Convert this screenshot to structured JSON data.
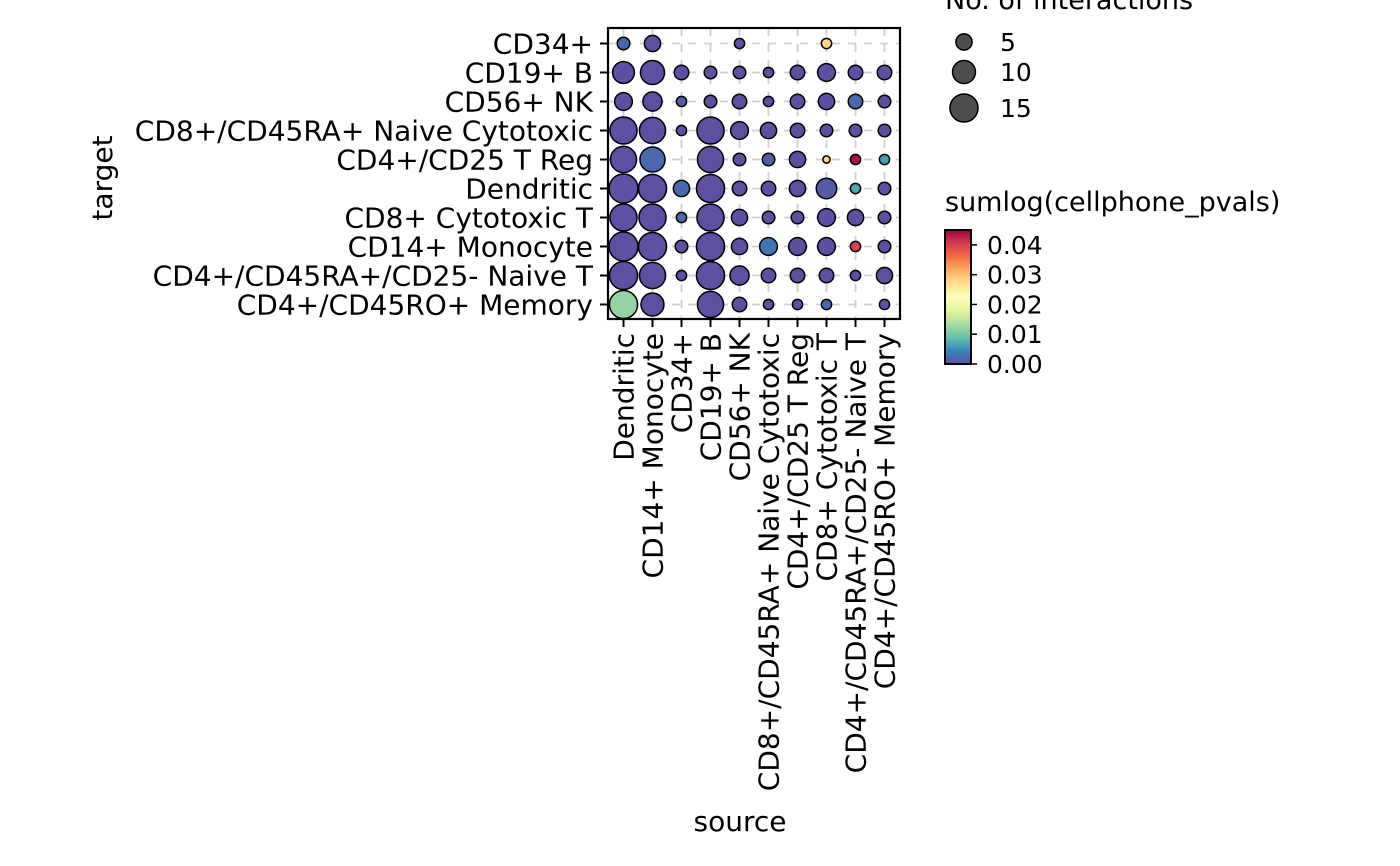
{
  "chart_data": {
    "type": "scatter",
    "xlabel": "source",
    "ylabel": "target",
    "x_categories": [
      "Dendritic",
      "CD14+ Monocyte",
      "CD34+",
      "CD19+ B",
      "CD56+ NK",
      "CD8+/CD45RA+ Naive Cytotoxic",
      "CD4+/CD25 T Reg",
      "CD8+ Cytotoxic T",
      "CD4+/CD45RA+/CD25- Naive T",
      "CD4+/CD45RO+ Memory"
    ],
    "y_categories": [
      "CD34+",
      "CD19+ B",
      "CD56+ NK",
      "CD8+/CD45RA+ Naive Cytotoxic",
      "CD4+/CD25 T Reg",
      "Dendritic",
      "CD8+ Cytotoxic T",
      "CD14+ Monocyte",
      "CD4+/CD45RA+/CD25- Naive T",
      "CD4+/CD45RO+ Memory"
    ],
    "size_legend": {
      "title": "No. of interactions",
      "values": [
        5,
        10,
        15
      ]
    },
    "color_legend": {
      "title": "sumlog(cellphone_pvals)",
      "min": 0.0,
      "max": 0.045,
      "ticks": [
        "0.00",
        "0.01",
        "0.02",
        "0.03",
        "0.04"
      ],
      "tick_values": [
        0.0,
        0.01,
        0.02,
        0.03,
        0.04
      ],
      "palette": "Spectral (reversed)",
      "stops": [
        "#5e4fa2",
        "#3288bd",
        "#66c2a5",
        "#abdda4",
        "#e6f598",
        "#ffffbf",
        "#fee08b",
        "#fdae61",
        "#f46d43",
        "#d53e4f",
        "#9e0142"
      ]
    },
    "points": [
      {
        "source": "Dendritic",
        "target": "CD34+",
        "count": 3,
        "pval": 0.002
      },
      {
        "source": "CD14+ Monocyte",
        "target": "CD34+",
        "count": 5,
        "pval": 0.0
      },
      {
        "source": "CD56+ NK",
        "target": "CD34+",
        "count": 2,
        "pval": 0.0
      },
      {
        "source": "CD8+ Cytotoxic T",
        "target": "CD34+",
        "count": 2,
        "pval": 0.028
      },
      {
        "source": "Dendritic",
        "target": "CD19+ B",
        "count": 9,
        "pval": 0.0
      },
      {
        "source": "CD14+ Monocyte",
        "target": "CD19+ B",
        "count": 11,
        "pval": 0.0
      },
      {
        "source": "CD34+",
        "target": "CD19+ B",
        "count": 4,
        "pval": 0.0
      },
      {
        "source": "CD19+ B",
        "target": "CD19+ B",
        "count": 3,
        "pval": 0.0
      },
      {
        "source": "CD56+ NK",
        "target": "CD19+ B",
        "count": 3,
        "pval": 0.0
      },
      {
        "source": "CD8+/CD45RA+ Naive Cytotoxic",
        "target": "CD19+ B",
        "count": 2,
        "pval": 0.0
      },
      {
        "source": "CD4+/CD25 T Reg",
        "target": "CD19+ B",
        "count": 4,
        "pval": 0.0
      },
      {
        "source": "CD8+ Cytotoxic T",
        "target": "CD19+ B",
        "count": 6,
        "pval": 0.0
      },
      {
        "source": "CD4+/CD45RA+/CD25- Naive T",
        "target": "CD19+ B",
        "count": 4,
        "pval": 0.0
      },
      {
        "source": "CD4+/CD45RO+ Memory",
        "target": "CD19+ B",
        "count": 4,
        "pval": 0.0
      },
      {
        "source": "Dendritic",
        "target": "CD56+ NK",
        "count": 6,
        "pval": 0.0
      },
      {
        "source": "CD14+ Monocyte",
        "target": "CD56+ NK",
        "count": 7,
        "pval": 0.0
      },
      {
        "source": "CD34+",
        "target": "CD56+ NK",
        "count": 2,
        "pval": 0.001
      },
      {
        "source": "CD19+ B",
        "target": "CD56+ NK",
        "count": 3,
        "pval": 0.0
      },
      {
        "source": "CD56+ NK",
        "target": "CD56+ NK",
        "count": 4,
        "pval": 0.0
      },
      {
        "source": "CD8+/CD45RA+ Naive Cytotoxic",
        "target": "CD56+ NK",
        "count": 2,
        "pval": 0.0
      },
      {
        "source": "CD4+/CD25 T Reg",
        "target": "CD56+ NK",
        "count": 4,
        "pval": 0.0
      },
      {
        "source": "CD8+ Cytotoxic T",
        "target": "CD56+ NK",
        "count": 5,
        "pval": 0.0
      },
      {
        "source": "CD4+/CD45RA+/CD25- Naive T",
        "target": "CD56+ NK",
        "count": 4,
        "pval": 0.002
      },
      {
        "source": "CD4+/CD45RO+ Memory",
        "target": "CD56+ NK",
        "count": 3,
        "pval": 0.0
      },
      {
        "source": "Dendritic",
        "target": "CD8+/CD45RA+ Naive Cytotoxic",
        "count": 14,
        "pval": 0.0
      },
      {
        "source": "CD14+ Monocyte",
        "target": "CD8+/CD45RA+ Naive Cytotoxic",
        "count": 13,
        "pval": 0.0
      },
      {
        "source": "CD34+",
        "target": "CD8+/CD45RA+ Naive Cytotoxic",
        "count": 2,
        "pval": 0.0
      },
      {
        "source": "CD19+ B",
        "target": "CD8+/CD45RA+ Naive Cytotoxic",
        "count": 14,
        "pval": 0.0
      },
      {
        "source": "CD56+ NK",
        "target": "CD8+/CD45RA+ Naive Cytotoxic",
        "count": 6,
        "pval": 0.0
      },
      {
        "source": "CD8+/CD45RA+ Naive Cytotoxic",
        "target": "CD8+/CD45RA+ Naive Cytotoxic",
        "count": 5,
        "pval": 0.0
      },
      {
        "source": "CD4+/CD25 T Reg",
        "target": "CD8+/CD45RA+ Naive Cytotoxic",
        "count": 4,
        "pval": 0.0
      },
      {
        "source": "CD8+ Cytotoxic T",
        "target": "CD8+/CD45RA+ Naive Cytotoxic",
        "count": 3,
        "pval": 0.0
      },
      {
        "source": "CD4+/CD45RA+/CD25- Naive T",
        "target": "CD8+/CD45RA+ Naive Cytotoxic",
        "count": 3,
        "pval": 0.0
      },
      {
        "source": "CD4+/CD45RO+ Memory",
        "target": "CD8+/CD45RA+ Naive Cytotoxic",
        "count": 3,
        "pval": 0.0
      },
      {
        "source": "Dendritic",
        "target": "CD4+/CD25 T Reg",
        "count": 13,
        "pval": 0.0
      },
      {
        "source": "CD14+ Monocyte",
        "target": "CD4+/CD25 T Reg",
        "count": 12,
        "pval": 0.002
      },
      {
        "source": "CD19+ B",
        "target": "CD4+/CD25 T Reg",
        "count": 13,
        "pval": 0.0
      },
      {
        "source": "CD56+ NK",
        "target": "CD4+/CD25 T Reg",
        "count": 3,
        "pval": 0.0
      },
      {
        "source": "CD8+/CD45RA+ Naive Cytotoxic",
        "target": "CD4+/CD25 T Reg",
        "count": 3,
        "pval": 0.001
      },
      {
        "source": "CD4+/CD25 T Reg",
        "target": "CD4+/CD25 T Reg",
        "count": 5,
        "pval": 0.0
      },
      {
        "source": "CD8+ Cytotoxic T",
        "target": "CD4+/CD25 T Reg",
        "count": 1,
        "pval": 0.028
      },
      {
        "source": "CD4+/CD45RA+/CD25- Naive T",
        "target": "CD4+/CD25 T Reg",
        "count": 2,
        "pval": 0.044
      },
      {
        "source": "CD4+/CD45RO+ Memory",
        "target": "CD4+/CD25 T Reg",
        "count": 2,
        "pval": 0.006
      },
      {
        "source": "Dendritic",
        "target": "Dendritic",
        "count": 16,
        "pval": 0.0
      },
      {
        "source": "CD14+ Monocyte",
        "target": "Dendritic",
        "count": 15,
        "pval": 0.0
      },
      {
        "source": "CD34+",
        "target": "Dendritic",
        "count": 5,
        "pval": 0.002
      },
      {
        "source": "CD19+ B",
        "target": "Dendritic",
        "count": 15,
        "pval": 0.0
      },
      {
        "source": "CD56+ NK",
        "target": "Dendritic",
        "count": 4,
        "pval": 0.0
      },
      {
        "source": "CD8+/CD45RA+ Naive Cytotoxic",
        "target": "Dendritic",
        "count": 4,
        "pval": 0.0
      },
      {
        "source": "CD4+/CD25 T Reg",
        "target": "Dendritic",
        "count": 5,
        "pval": 0.0
      },
      {
        "source": "CD8+ Cytotoxic T",
        "target": "Dendritic",
        "count": 8,
        "pval": 0.001
      },
      {
        "source": "CD4+/CD45RA+/CD25- Naive T",
        "target": "Dendritic",
        "count": 2,
        "pval": 0.007
      },
      {
        "source": "CD4+/CD45RO+ Memory",
        "target": "Dendritic",
        "count": 3,
        "pval": 0.0
      },
      {
        "source": "Dendritic",
        "target": "CD8+ Cytotoxic T",
        "count": 14,
        "pval": 0.0
      },
      {
        "source": "CD14+ Monocyte",
        "target": "CD8+ Cytotoxic T",
        "count": 14,
        "pval": 0.0
      },
      {
        "source": "CD34+",
        "target": "CD8+ Cytotoxic T",
        "count": 2,
        "pval": 0.002
      },
      {
        "source": "CD19+ B",
        "target": "CD8+ Cytotoxic T",
        "count": 14,
        "pval": 0.0
      },
      {
        "source": "CD56+ NK",
        "target": "CD8+ Cytotoxic T",
        "count": 5,
        "pval": 0.0
      },
      {
        "source": "CD8+/CD45RA+ Naive Cytotoxic",
        "target": "CD8+ Cytotoxic T",
        "count": 3,
        "pval": 0.0
      },
      {
        "source": "CD4+/CD25 T Reg",
        "target": "CD8+ Cytotoxic T",
        "count": 3,
        "pval": 0.0
      },
      {
        "source": "CD8+ Cytotoxic T",
        "target": "CD8+ Cytotoxic T",
        "count": 6,
        "pval": 0.0
      },
      {
        "source": "CD4+/CD45RA+/CD25- Naive T",
        "target": "CD8+ Cytotoxic T",
        "count": 5,
        "pval": 0.0
      },
      {
        "source": "CD4+/CD45RO+ Memory",
        "target": "CD8+ Cytotoxic T",
        "count": 3,
        "pval": 0.0
      },
      {
        "source": "Dendritic",
        "target": "CD14+ Monocyte",
        "count": 16,
        "pval": 0.0
      },
      {
        "source": "CD14+ Monocyte",
        "target": "CD14+ Monocyte",
        "count": 15,
        "pval": 0.0
      },
      {
        "source": "CD34+",
        "target": "CD14+ Monocyte",
        "count": 3,
        "pval": 0.0
      },
      {
        "source": "CD19+ B",
        "target": "CD14+ Monocyte",
        "count": 15,
        "pval": 0.0
      },
      {
        "source": "CD56+ NK",
        "target": "CD14+ Monocyte",
        "count": 5,
        "pval": 0.0
      },
      {
        "source": "CD8+/CD45RA+ Naive Cytotoxic",
        "target": "CD14+ Monocyte",
        "count": 6,
        "pval": 0.003
      },
      {
        "source": "CD4+/CD25 T Reg",
        "target": "CD14+ Monocyte",
        "count": 6,
        "pval": 0.0
      },
      {
        "source": "CD8+ Cytotoxic T",
        "target": "CD14+ Monocyte",
        "count": 6,
        "pval": 0.0
      },
      {
        "source": "CD4+/CD45RA+/CD25- Naive T",
        "target": "CD14+ Monocyte",
        "count": 2,
        "pval": 0.04
      },
      {
        "source": "CD4+/CD45RO+ Memory",
        "target": "CD14+ Monocyte",
        "count": 3,
        "pval": 0.0
      },
      {
        "source": "Dendritic",
        "target": "CD4+/CD45RA+/CD25- Naive T",
        "count": 15,
        "pval": 0.0
      },
      {
        "source": "CD14+ Monocyte",
        "target": "CD4+/CD45RA+/CD25- Naive T",
        "count": 13,
        "pval": 0.0
      },
      {
        "source": "CD34+",
        "target": "CD4+/CD45RA+/CD25- Naive T",
        "count": 2,
        "pval": 0.0
      },
      {
        "source": "CD19+ B",
        "target": "CD4+/CD45RA+/CD25- Naive T",
        "count": 15,
        "pval": 0.0
      },
      {
        "source": "CD56+ NK",
        "target": "CD4+/CD45RA+/CD25- Naive T",
        "count": 7,
        "pval": 0.0
      },
      {
        "source": "CD8+/CD45RA+ Naive Cytotoxic",
        "target": "CD4+/CD45RA+/CD25- Naive T",
        "count": 4,
        "pval": 0.0
      },
      {
        "source": "CD4+/CD25 T Reg",
        "target": "CD4+/CD45RA+/CD25- Naive T",
        "count": 4,
        "pval": 0.0
      },
      {
        "source": "CD8+ Cytotoxic T",
        "target": "CD4+/CD45RA+/CD25- Naive T",
        "count": 4,
        "pval": 0.0
      },
      {
        "source": "CD4+/CD45RA+/CD25- Naive T",
        "target": "CD4+/CD45RA+/CD25- Naive T",
        "count": 2,
        "pval": 0.0
      },
      {
        "source": "CD4+/CD45RO+ Memory",
        "target": "CD4+/CD45RA+/CD25- Naive T",
        "count": 5,
        "pval": 0.0
      },
      {
        "source": "Dendritic",
        "target": "CD4+/CD45RO+ Memory",
        "count": 15,
        "pval": 0.012
      },
      {
        "source": "CD14+ Monocyte",
        "target": "CD4+/CD45RO+ Memory",
        "count": 10,
        "pval": 0.0
      },
      {
        "source": "CD19+ B",
        "target": "CD4+/CD45RO+ Memory",
        "count": 13,
        "pval": 0.0
      },
      {
        "source": "CD56+ NK",
        "target": "CD4+/CD45RO+ Memory",
        "count": 4,
        "pval": 0.0
      },
      {
        "source": "CD8+/CD45RA+ Naive Cytotoxic",
        "target": "CD4+/CD45RO+ Memory",
        "count": 2,
        "pval": 0.0
      },
      {
        "source": "CD4+/CD25 T Reg",
        "target": "CD4+/CD45RO+ Memory",
        "count": 2,
        "pval": 0.0
      },
      {
        "source": "CD8+ Cytotoxic T",
        "target": "CD4+/CD45RO+ Memory",
        "count": 2,
        "pval": 0.002
      },
      {
        "source": "CD4+/CD45RO+ Memory",
        "target": "CD4+/CD45RO+ Memory",
        "count": 2,
        "pval": 0.0
      }
    ],
    "grid": true,
    "grid_style": "dashed",
    "legend_position": "right"
  }
}
